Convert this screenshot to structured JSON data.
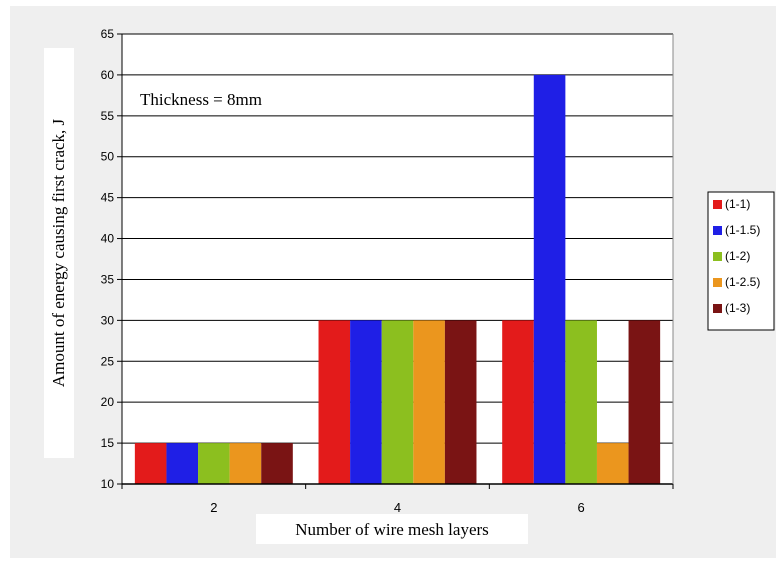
{
  "chart_data": {
    "type": "bar",
    "title": "",
    "annotation": "Thickness = 8mm",
    "xlabel": "Number of wire mesh layers",
    "ylabel": "Amount of energy causing first crack, J",
    "categories": [
      "2",
      "4",
      "6"
    ],
    "ylim": [
      10,
      65
    ],
    "yticks": [
      10,
      15,
      20,
      25,
      30,
      35,
      40,
      45,
      50,
      55,
      60,
      65
    ],
    "grid": true,
    "legend_position": "right",
    "series": [
      {
        "name": "(1-1)",
        "color": "#e31b1b",
        "values": [
          15,
          30,
          30
        ]
      },
      {
        "name": "(1-1.5)",
        "color": "#1f1fe6",
        "values": [
          15,
          30,
          60
        ]
      },
      {
        "name": "(1-2)",
        "color": "#8cbf1f",
        "values": [
          15,
          30,
          30
        ]
      },
      {
        "name": "(1-2.5)",
        "color": "#eb961e",
        "values": [
          15,
          30,
          15
        ]
      },
      {
        "name": "(1-3)",
        "color": "#7a1414",
        "values": [
          15,
          30,
          30
        ]
      }
    ]
  }
}
